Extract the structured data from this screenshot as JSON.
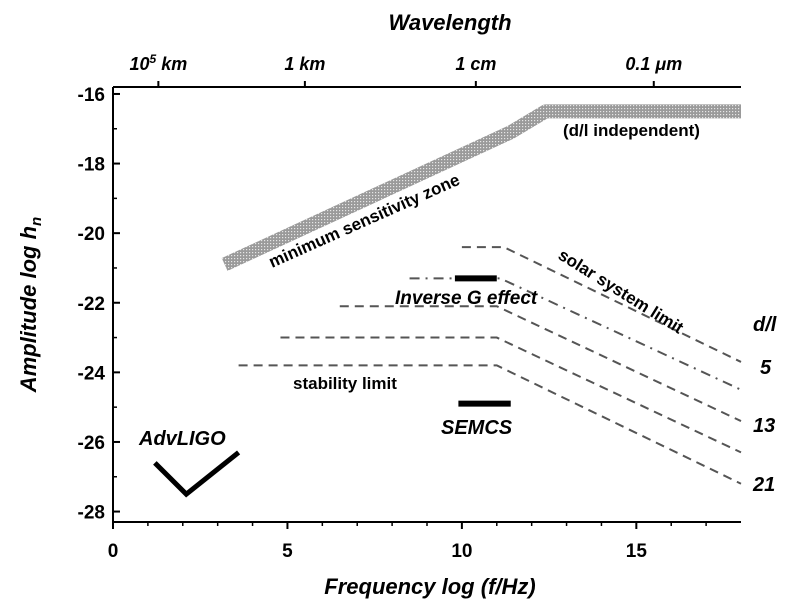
{
  "chart_data": {
    "type": "line",
    "title": "",
    "top_axis_title": "Wavelength",
    "top_ticks": [
      {
        "x": 1.3,
        "label": "10",
        "sup": "5",
        "unit": " km"
      },
      {
        "x": 5.5,
        "label": "1 km",
        "sup": "",
        "unit": ""
      },
      {
        "x": 10.4,
        "label": "1 cm",
        "sup": "",
        "unit": ""
      },
      {
        "x": 15.5,
        "label": "0.1 ",
        "sup": "",
        "unit": "μm"
      }
    ],
    "xlabel": "Frequency log (f/Hz)",
    "ylabel_main": "Amplitude log h",
    "ylabel_sub": "n",
    "xlim": [
      0,
      18
    ],
    "ylim": [
      -28.3,
      -15.8
    ],
    "xticks": [
      0,
      5,
      10,
      15
    ],
    "yticks": [
      -28,
      -26,
      -24,
      -22,
      -20,
      -18,
      -16
    ],
    "series": [
      {
        "name": "minimum sensitivity zone",
        "style": "band",
        "x": [
          3.2,
          11.4,
          12.4,
          18
        ],
        "y": [
          -20.9,
          -17.1,
          -16.5,
          -16.5
        ]
      },
      {
        "name": "",
        "style": "dashed",
        "x": [
          10.0,
          11.2,
          18
        ],
        "y": [
          -20.4,
          -20.4,
          -23.7
        ]
      },
      {
        "name": "",
        "style": "dashdot",
        "x": [
          8.5,
          11.1,
          18
        ],
        "y": [
          -21.3,
          -21.3,
          -24.5
        ]
      },
      {
        "name": "",
        "style": "dashed",
        "x": [
          6.5,
          11.0,
          18
        ],
        "y": [
          -22.1,
          -22.1,
          -25.4
        ]
      },
      {
        "name": "",
        "style": "dashed",
        "x": [
          4.8,
          11.0,
          18
        ],
        "y": [
          -23.0,
          -23.0,
          -26.3
        ]
      },
      {
        "name": "",
        "style": "dashed",
        "x": [
          3.6,
          11.0,
          18
        ],
        "y": [
          -23.8,
          -23.8,
          -27.2
        ]
      }
    ],
    "bars": [
      {
        "name": "inverse-g-bar",
        "x": [
          9.8,
          11.0
        ],
        "y": -21.3
      },
      {
        "name": "semcs-bar",
        "x": [
          9.9,
          11.4
        ],
        "y": -24.9
      }
    ],
    "advligo_curve": {
      "x": [
        1.2,
        2.1,
        3.6
      ],
      "y": [
        -26.6,
        -27.5,
        -26.3
      ]
    },
    "annotations": [
      {
        "id": "min-sens",
        "text": "minimum sensitivity zone"
      },
      {
        "id": "d-l-indep",
        "text": "(d/l independent)"
      },
      {
        "id": "solar",
        "text": "solar system limit"
      },
      {
        "id": "inverse-g",
        "text": "Inverse G effect"
      },
      {
        "id": "stability",
        "text": "stability limit"
      },
      {
        "id": "semcs",
        "text": "SEMCS"
      },
      {
        "id": "advligo",
        "text": "AdvLIGO"
      },
      {
        "id": "dl-header",
        "text": "d/l"
      },
      {
        "id": "dl-5",
        "text": "5"
      },
      {
        "id": "dl-13",
        "text": "13"
      },
      {
        "id": "dl-21",
        "text": "21"
      }
    ],
    "colors": {
      "band": "#8c8c8c",
      "dashed": "#555555",
      "axis": "#000000"
    }
  }
}
